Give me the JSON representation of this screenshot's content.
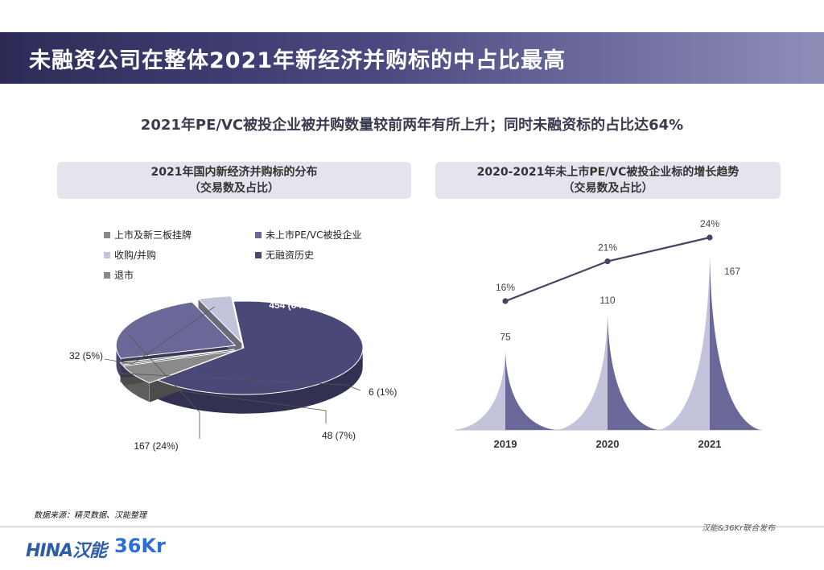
{
  "header": {
    "title": "未融资公司在整体2021年新经济并购标的中占比最高"
  },
  "subtitle": "2021年PE/VC被投企业被并购数量较前两年有所上升；同时未融资标的占比达64%",
  "colors": {
    "dark_navy": "#4a4877",
    "mid_purple": "#6a6898",
    "light_lavender": "#c3c3dc",
    "gray": "#8a8a8a",
    "line": "#444466"
  },
  "left_panel": {
    "header_line1": "2021年国内新经济并购标的分布",
    "header_line2": "（交易数及占比）"
  },
  "right_panel": {
    "header_line1": "2020-2021年未上市PE/VC被投企业标的增长趋势",
    "header_line2": "（交易数及占比）"
  },
  "chart_data": [
    {
      "type": "pie",
      "legend": [
        {
          "label": "上市及新三板挂牌",
          "color": "#8a8a8a"
        },
        {
          "label": "未上市PE/VC被投企业",
          "color": "#6a6898"
        },
        {
          "label": "收购/并购",
          "color": "#c3c3dc"
        },
        {
          "label": "无融资历史",
          "color": "#4a4877"
        },
        {
          "label": "退市",
          "color": "#8a8a8a"
        }
      ],
      "slices": [
        {
          "label": "454 (64%)",
          "value": 454,
          "percent": 64,
          "color": "#4a4877"
        },
        {
          "label": "48 (7%)",
          "value": 48,
          "percent": 7,
          "color": "#8a8a8a"
        },
        {
          "label": "6 (1%)",
          "value": 6,
          "percent": 1,
          "color": "#8a8a8a"
        },
        {
          "label": "167 (24%)",
          "value": 167,
          "percent": 24,
          "color": "#6a6898"
        },
        {
          "label": "32 (5%)",
          "value": 32,
          "percent": 5,
          "color": "#c3c3dc"
        }
      ]
    },
    {
      "type": "bar",
      "categories": [
        "2019",
        "2020",
        "2021"
      ],
      "values": [
        75,
        110,
        167
      ],
      "value_labels": [
        "75",
        "110",
        "167"
      ],
      "line_values": [
        16,
        21,
        24
      ],
      "line_labels": [
        "16%",
        "21%",
        "24%"
      ],
      "ylim": [
        0,
        180
      ]
    }
  ],
  "footer": {
    "source": "数据来源：精灵数据、汉能整理",
    "credit": "汉能&36Kr联合发布",
    "logo_china": "HINA汉能",
    "logo_36kr": "36Kr"
  }
}
